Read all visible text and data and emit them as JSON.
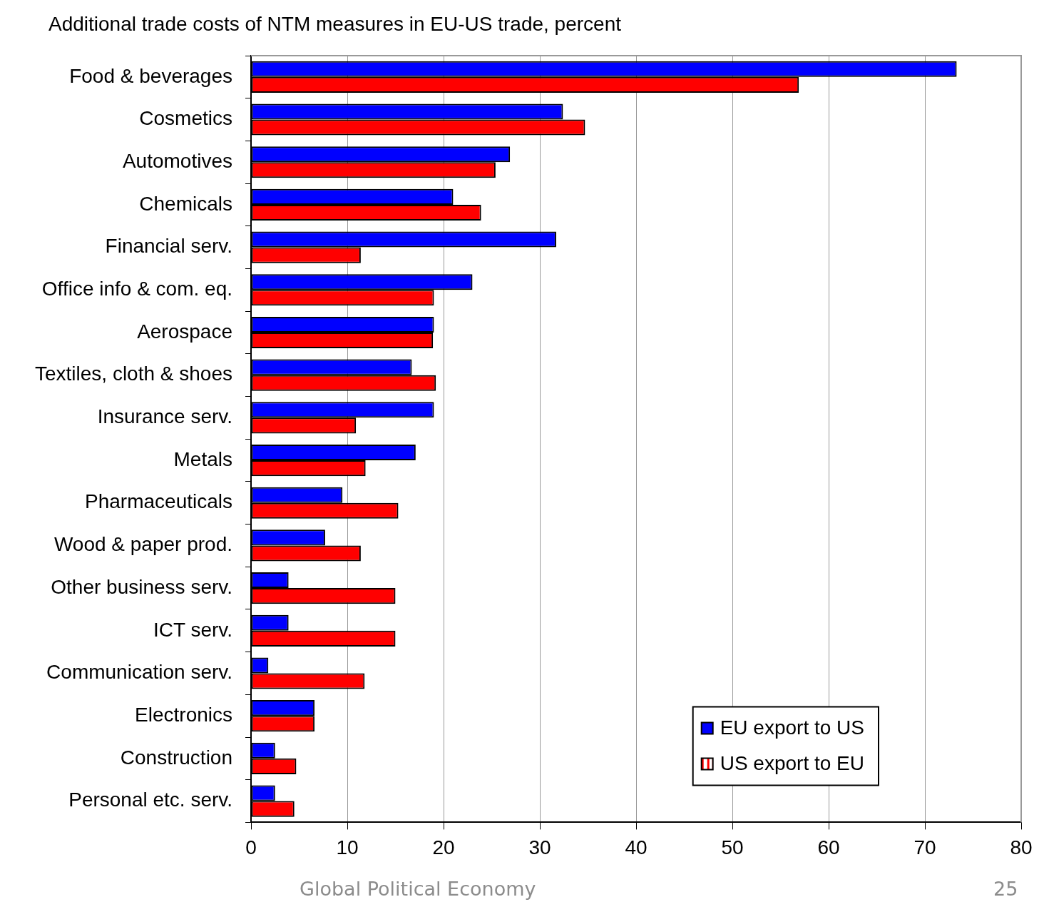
{
  "chart_data": {
    "type": "bar",
    "orientation": "horizontal",
    "title": "Additional trade costs of NTM measures in EU-US trade, percent",
    "categories": [
      "Food & beverages",
      "Cosmetics",
      "Automotives",
      "Chemicals",
      "Financial serv.",
      "Office info & com. eq.",
      "Aerospace",
      "Textiles, cloth & shoes",
      "Insurance serv.",
      "Metals",
      "Pharmaceuticals",
      "Wood & paper prod.",
      "Other business serv.",
      "ICT serv.",
      "Communication serv.",
      "Electronics",
      "Construction",
      "Personal etc. serv."
    ],
    "series": [
      {
        "name": "EU export to US",
        "color": "#0000ff",
        "values": [
          73.3,
          32.4,
          26.9,
          21.0,
          31.7,
          23.0,
          19.0,
          16.7,
          19.0,
          17.1,
          9.5,
          7.7,
          3.9,
          3.9,
          1.8,
          6.6,
          2.5,
          2.5
        ]
      },
      {
        "name": "US export to EU",
        "color": "#ff0000",
        "values": [
          56.9,
          34.7,
          25.4,
          23.9,
          11.4,
          19.0,
          18.9,
          19.2,
          10.9,
          11.9,
          15.3,
          11.4,
          15.0,
          15.0,
          11.8,
          6.6,
          4.7,
          4.5
        ]
      }
    ],
    "xlim": [
      0,
      80
    ],
    "xticks": [
      0,
      10,
      20,
      30,
      40,
      50,
      60,
      70,
      80
    ],
    "grid": "x",
    "legend": "bottom right",
    "annotations": [
      "Global Political Economy",
      "25"
    ]
  }
}
